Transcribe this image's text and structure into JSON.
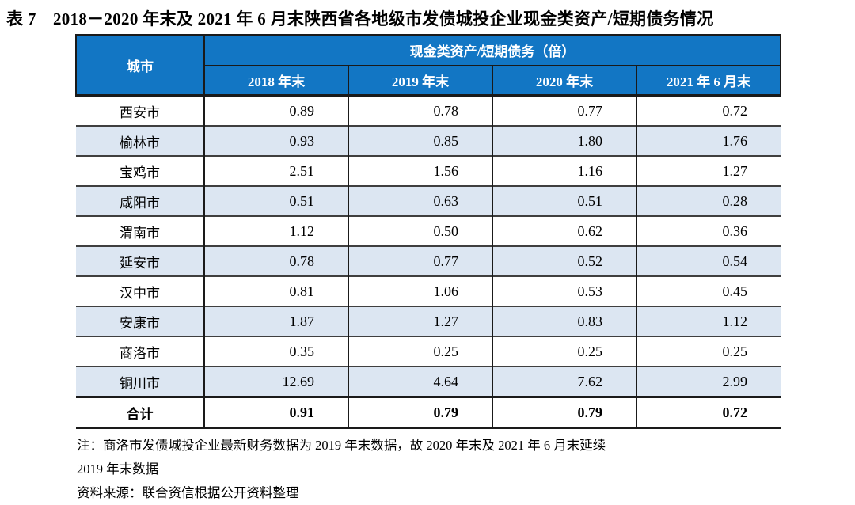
{
  "title": "表 7　2018－2020 年末及 2021 年 6 月末陕西省各地级市发债城投企业现金类资产/短期债务情况",
  "table": {
    "city_header": "城市",
    "group_header": "现金类资产/短期债务（倍）",
    "period_headers": [
      "2018 年末",
      "2019 年末",
      "2020 年末",
      "2021 年 6 月末"
    ],
    "rows": [
      {
        "city": "西安市",
        "values": [
          "0.89",
          "0.78",
          "0.77",
          "0.72"
        ]
      },
      {
        "city": "榆林市",
        "values": [
          "0.93",
          "0.85",
          "1.80",
          "1.76"
        ]
      },
      {
        "city": "宝鸡市",
        "values": [
          "2.51",
          "1.56",
          "1.16",
          "1.27"
        ]
      },
      {
        "city": "咸阳市",
        "values": [
          "0.51",
          "0.63",
          "0.51",
          "0.28"
        ]
      },
      {
        "city": "渭南市",
        "values": [
          "1.12",
          "0.50",
          "0.62",
          "0.36"
        ]
      },
      {
        "city": "延安市",
        "values": [
          "0.78",
          "0.77",
          "0.52",
          "0.54"
        ]
      },
      {
        "city": "汉中市",
        "values": [
          "0.81",
          "1.06",
          "0.53",
          "0.45"
        ]
      },
      {
        "city": "安康市",
        "values": [
          "1.87",
          "1.27",
          "0.83",
          "1.12"
        ]
      },
      {
        "city": "商洛市",
        "values": [
          "0.35",
          "0.25",
          "0.25",
          "0.25"
        ]
      },
      {
        "city": "铜川市",
        "values": [
          "12.69",
          "4.64",
          "7.62",
          "2.99"
        ]
      }
    ],
    "total_row": {
      "city": "合计",
      "values": [
        "0.91",
        "0.79",
        "0.79",
        "0.72"
      ]
    }
  },
  "notes": {
    "note_line1": "注：商洛市发债城投企业最新财务数据为 2019 年末数据，故 2020 年末及 2021 年 6 月末延续",
    "note_line2": "2019 年末数据",
    "source": "资料来源：联合资信根据公开资料整理"
  },
  "colors": {
    "header_bg": "#1276C4",
    "row_alt_bg": "#DCE6F2",
    "header_text": "#FFFFFF",
    "body_text": "#000000",
    "border_dark": "#1A1A1A"
  }
}
